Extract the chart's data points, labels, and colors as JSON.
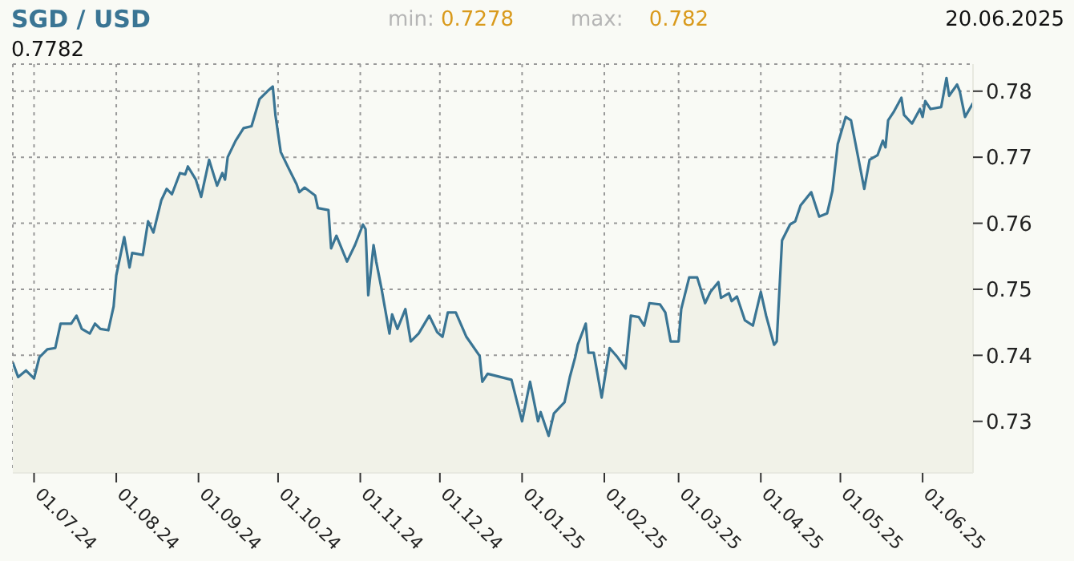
{
  "chart_data": {
    "type": "area",
    "title": "SGD / USD",
    "annotations": [
      "min: 0.7278",
      "max: 0.782",
      "20.06.2025",
      "0.7782"
    ],
    "x": [
      "2024-06-23",
      "2024-06-25",
      "2024-06-28",
      "2024-07-01",
      "2024-07-03",
      "2024-07-06",
      "2024-07-09",
      "2024-07-11",
      "2024-07-15",
      "2024-07-17",
      "2024-07-19",
      "2024-07-22",
      "2024-07-24",
      "2024-07-26",
      "2024-07-29",
      "2024-07-31",
      "2024-08-01",
      "2024-08-04",
      "2024-08-06",
      "2024-08-07",
      "2024-08-11",
      "2024-08-13",
      "2024-08-15",
      "2024-08-18",
      "2024-08-20",
      "2024-08-22",
      "2024-08-25",
      "2024-08-27",
      "2024-08-28",
      "2024-08-31",
      "2024-09-02",
      "2024-09-05",
      "2024-09-08",
      "2024-09-10",
      "2024-09-11",
      "2024-09-12",
      "2024-09-15",
      "2024-09-18",
      "2024-09-21",
      "2024-09-24",
      "2024-09-27",
      "2024-09-29",
      "2024-09-30",
      "2024-10-02",
      "2024-10-05",
      "2024-10-08",
      "2024-10-09",
      "2024-10-11",
      "2024-10-15",
      "2024-10-16",
      "2024-10-20",
      "2024-10-21",
      "2024-10-23",
      "2024-10-27",
      "2024-10-30",
      "2024-11-02",
      "2024-11-03",
      "2024-11-04",
      "2024-11-06",
      "2024-11-07",
      "2024-11-09",
      "2024-11-12",
      "2024-11-13",
      "2024-11-15",
      "2024-11-18",
      "2024-11-20",
      "2024-11-23",
      "2024-11-27",
      "2024-11-30",
      "2024-12-02",
      "2024-12-04",
      "2024-12-07",
      "2024-12-11",
      "2024-12-16",
      "2024-12-17",
      "2024-12-19",
      "2024-12-28",
      "2024-12-30",
      "2025-01-01",
      "2025-01-04",
      "2025-01-07",
      "2025-01-08",
      "2025-01-11",
      "2025-01-13",
      "2025-01-17",
      "2025-01-19",
      "2025-01-21",
      "2025-01-22",
      "2025-01-25",
      "2025-01-26",
      "2025-01-28",
      "2025-01-31",
      "2025-02-03",
      "2025-02-06",
      "2025-02-09",
      "2025-02-11",
      "2025-02-14",
      "2025-02-16",
      "2025-02-18",
      "2025-02-22",
      "2025-02-24",
      "2025-02-26",
      "2025-03-01",
      "2025-03-02",
      "2025-03-05",
      "2025-03-08",
      "2025-03-11",
      "2025-03-13",
      "2025-03-16",
      "2025-03-17",
      "2025-03-20",
      "2025-03-21",
      "2025-03-23",
      "2025-03-26",
      "2025-03-29",
      "2025-04-01",
      "2025-04-03",
      "2025-04-06",
      "2025-04-07",
      "2025-04-09",
      "2025-04-12",
      "2025-04-14",
      "2025-04-16",
      "2025-04-20",
      "2025-04-23",
      "2025-04-26",
      "2025-04-28",
      "2025-04-30",
      "2025-05-03",
      "2025-05-05",
      "2025-05-10",
      "2025-05-12",
      "2025-05-15",
      "2025-05-17",
      "2025-05-18",
      "2025-05-19",
      "2025-05-21",
      "2025-05-24",
      "2025-05-25",
      "2025-05-28",
      "2025-05-31",
      "2025-06-01",
      "2025-06-02",
      "2025-06-04",
      "2025-06-08",
      "2025-06-10",
      "2025-06-11",
      "2025-06-14",
      "2025-06-15",
      "2025-06-17",
      "2025-06-20"
    ],
    "series": [
      {
        "color": "#3a7594",
        "values": [
          0.7389,
          0.7367,
          0.7377,
          0.7365,
          0.7397,
          0.7409,
          0.7411,
          0.7448,
          0.7448,
          0.746,
          0.744,
          0.7433,
          0.7448,
          0.744,
          0.7438,
          0.7474,
          0.7521,
          0.7579,
          0.7533,
          0.7555,
          0.7552,
          0.7603,
          0.7586,
          0.7635,
          0.7652,
          0.7644,
          0.7676,
          0.7674,
          0.7686,
          0.7666,
          0.764,
          0.7696,
          0.7657,
          0.7676,
          0.7666,
          0.77,
          0.7725,
          0.7744,
          0.7747,
          0.7788,
          0.78,
          0.7807,
          0.7764,
          0.7708,
          0.7683,
          0.7659,
          0.7647,
          0.7654,
          0.7642,
          0.7623,
          0.762,
          0.7562,
          0.7581,
          0.7542,
          0.7567,
          0.7598,
          0.7591,
          0.7491,
          0.7567,
          0.7542,
          0.7501,
          0.7433,
          0.7462,
          0.744,
          0.747,
          0.7421,
          0.7433,
          0.746,
          0.7435,
          0.7428,
          0.7465,
          0.7465,
          0.7428,
          0.7399,
          0.736,
          0.7372,
          0.7363,
          0.7331,
          0.73,
          0.736,
          0.73,
          0.7314,
          0.7278,
          0.7312,
          0.7329,
          0.7367,
          0.7397,
          0.7416,
          0.7448,
          0.7404,
          0.7404,
          0.7336,
          0.7411,
          0.7397,
          0.738,
          0.746,
          0.7458,
          0.7445,
          0.7479,
          0.7477,
          0.7465,
          0.7421,
          0.7421,
          0.747,
          0.7518,
          0.7518,
          0.7479,
          0.7496,
          0.7511,
          0.7487,
          0.7494,
          0.7482,
          0.7489,
          0.7453,
          0.7445,
          0.7496,
          0.746,
          0.7416,
          0.7421,
          0.7574,
          0.7598,
          0.7603,
          0.7627,
          0.7647,
          0.761,
          0.7615,
          0.7649,
          0.772,
          0.7761,
          0.7756,
          0.7652,
          0.7696,
          0.7703,
          0.7725,
          0.7715,
          0.7756,
          0.7768,
          0.779,
          0.7764,
          0.7751,
          0.7773,
          0.7761,
          0.7785,
          0.7773,
          0.7776,
          0.782,
          0.7793,
          0.781,
          0.78,
          0.7761,
          0.7782
        ]
      }
    ],
    "xlim": [
      "2024-06-23",
      "2025-06-20"
    ],
    "xticks": [
      {
        "value": "2024-07-01",
        "label": "01.07.24"
      },
      {
        "value": "2024-08-01",
        "label": "01.08.24"
      },
      {
        "value": "2024-09-01",
        "label": "01.09.24"
      },
      {
        "value": "2024-10-01",
        "label": "01.10.24"
      },
      {
        "value": "2024-11-01",
        "label": "01.11.24"
      },
      {
        "value": "2024-12-01",
        "label": "01.12.24"
      },
      {
        "value": "2025-01-01",
        "label": "01.01.25"
      },
      {
        "value": "2025-02-01",
        "label": "01.02.25"
      },
      {
        "value": "2025-03-01",
        "label": "01.03.25"
      },
      {
        "value": "2025-04-01",
        "label": "01.04.25"
      },
      {
        "value": "2025-05-01",
        "label": "01.05.25"
      },
      {
        "value": "2025-06-01",
        "label": "01.06.25"
      }
    ],
    "ylim": [
      0.7222,
      0.7841
    ],
    "yticks": [
      0.73,
      0.74,
      0.75,
      0.76,
      0.77,
      0.78
    ],
    "grid": true
  }
}
